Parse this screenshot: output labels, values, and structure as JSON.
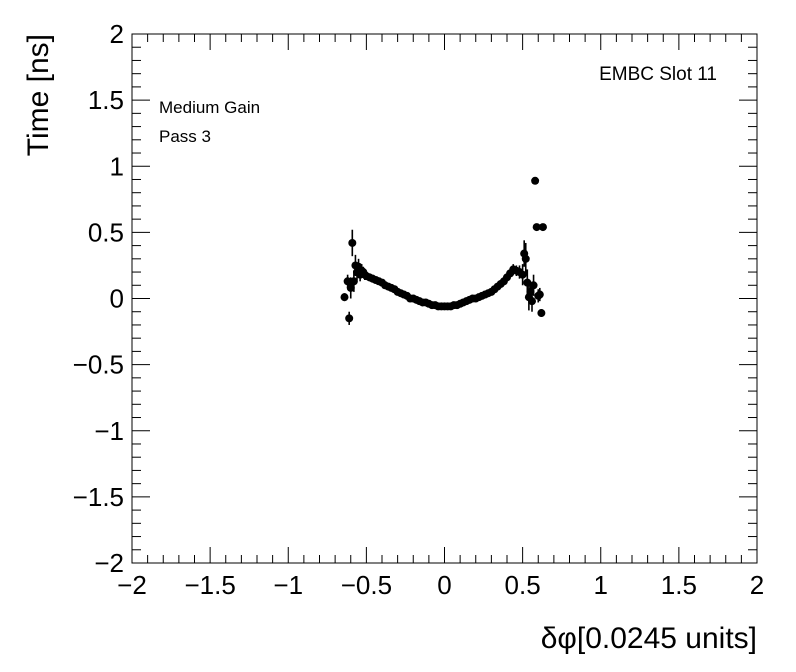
{
  "chart_data": {
    "type": "scatter",
    "title": "",
    "xlabel": "δφ[0.0245 units]",
    "ylabel": "Time [ns]",
    "xlim": [
      -2,
      2
    ],
    "ylim": [
      -2,
      2
    ],
    "xticks": [
      -2,
      -1.5,
      -1,
      -0.5,
      0,
      0.5,
      1,
      1.5,
      2
    ],
    "yticks": [
      -2,
      -1.5,
      -1,
      -0.5,
      0,
      0.5,
      1,
      1.5,
      2
    ],
    "xtick_labels": [
      "−2",
      "−1.5",
      "−1",
      "−0.5",
      "0",
      "0.5",
      "1",
      "1.5",
      "2"
    ],
    "ytick_labels": [
      "−2",
      "−1.5",
      "−1",
      "−0.5",
      "0",
      "0.5",
      "1",
      "1.5",
      "2"
    ],
    "grid": false,
    "annotations": [
      "Medium Gain",
      "Pass 3",
      "EMBC Slot 11"
    ],
    "series": [
      {
        "marker": "circle",
        "color": "#000000",
        "points": [
          {
            "x": -0.64,
            "y": 0.01,
            "err": 0.03
          },
          {
            "x": -0.62,
            "y": 0.13,
            "err": 0.05
          },
          {
            "x": -0.61,
            "y": -0.15,
            "err": 0.05
          },
          {
            "x": -0.6,
            "y": 0.08,
            "err": 0.08
          },
          {
            "x": -0.59,
            "y": 0.42,
            "err": 0.1
          },
          {
            "x": -0.58,
            "y": 0.13,
            "err": 0.08
          },
          {
            "x": -0.57,
            "y": 0.25,
            "err": 0.08
          },
          {
            "x": -0.56,
            "y": 0.2,
            "err": 0.06
          },
          {
            "x": -0.55,
            "y": 0.24,
            "err": 0.06
          },
          {
            "x": -0.54,
            "y": 0.18,
            "err": 0.05
          },
          {
            "x": -0.53,
            "y": 0.21,
            "err": 0.05
          },
          {
            "x": -0.52,
            "y": 0.2,
            "err": 0.04
          },
          {
            "x": -0.51,
            "y": 0.18,
            "err": 0.04
          },
          {
            "x": -0.5,
            "y": 0.17,
            "err": 0.03
          },
          {
            "x": -0.48,
            "y": 0.16,
            "err": 0.03
          },
          {
            "x": -0.46,
            "y": 0.15,
            "err": 0.03
          },
          {
            "x": -0.44,
            "y": 0.14,
            "err": 0.02
          },
          {
            "x": -0.42,
            "y": 0.13,
            "err": 0.02
          },
          {
            "x": -0.4,
            "y": 0.12,
            "err": 0.02
          },
          {
            "x": -0.38,
            "y": 0.1,
            "err": 0.02
          },
          {
            "x": -0.36,
            "y": 0.09,
            "err": 0.02
          },
          {
            "x": -0.34,
            "y": 0.08,
            "err": 0.02
          },
          {
            "x": -0.32,
            "y": 0.07,
            "err": 0.02
          },
          {
            "x": -0.3,
            "y": 0.05,
            "err": 0.02
          },
          {
            "x": -0.28,
            "y": 0.04,
            "err": 0.02
          },
          {
            "x": -0.26,
            "y": 0.03,
            "err": 0.02
          },
          {
            "x": -0.24,
            "y": 0.02,
            "err": 0.02
          },
          {
            "x": -0.22,
            "y": 0.0,
            "err": 0.02
          },
          {
            "x": -0.2,
            "y": 0.0,
            "err": 0.02
          },
          {
            "x": -0.18,
            "y": -0.01,
            "err": 0.02
          },
          {
            "x": -0.16,
            "y": -0.02,
            "err": 0.02
          },
          {
            "x": -0.14,
            "y": -0.03,
            "err": 0.02
          },
          {
            "x": -0.12,
            "y": -0.03,
            "err": 0.02
          },
          {
            "x": -0.1,
            "y": -0.04,
            "err": 0.02
          },
          {
            "x": -0.08,
            "y": -0.05,
            "err": 0.02
          },
          {
            "x": -0.06,
            "y": -0.05,
            "err": 0.02
          },
          {
            "x": -0.04,
            "y": -0.06,
            "err": 0.02
          },
          {
            "x": -0.02,
            "y": -0.06,
            "err": 0.02
          },
          {
            "x": 0.0,
            "y": -0.06,
            "err": 0.02
          },
          {
            "x": 0.02,
            "y": -0.06,
            "err": 0.02
          },
          {
            "x": 0.04,
            "y": -0.06,
            "err": 0.02
          },
          {
            "x": 0.06,
            "y": -0.05,
            "err": 0.02
          },
          {
            "x": 0.08,
            "y": -0.05,
            "err": 0.02
          },
          {
            "x": 0.1,
            "y": -0.04,
            "err": 0.02
          },
          {
            "x": 0.12,
            "y": -0.03,
            "err": 0.02
          },
          {
            "x": 0.14,
            "y": -0.02,
            "err": 0.02
          },
          {
            "x": 0.16,
            "y": -0.01,
            "err": 0.02
          },
          {
            "x": 0.18,
            "y": 0.0,
            "err": 0.02
          },
          {
            "x": 0.2,
            "y": 0.0,
            "err": 0.02
          },
          {
            "x": 0.22,
            "y": 0.01,
            "err": 0.02
          },
          {
            "x": 0.24,
            "y": 0.02,
            "err": 0.02
          },
          {
            "x": 0.26,
            "y": 0.03,
            "err": 0.02
          },
          {
            "x": 0.28,
            "y": 0.04,
            "err": 0.02
          },
          {
            "x": 0.3,
            "y": 0.05,
            "err": 0.02
          },
          {
            "x": 0.32,
            "y": 0.07,
            "err": 0.02
          },
          {
            "x": 0.34,
            "y": 0.09,
            "err": 0.02
          },
          {
            "x": 0.36,
            "y": 0.11,
            "err": 0.03
          },
          {
            "x": 0.38,
            "y": 0.13,
            "err": 0.03
          },
          {
            "x": 0.4,
            "y": 0.16,
            "err": 0.03
          },
          {
            "x": 0.42,
            "y": 0.19,
            "err": 0.03
          },
          {
            "x": 0.44,
            "y": 0.22,
            "err": 0.04
          },
          {
            "x": 0.46,
            "y": 0.21,
            "err": 0.04
          },
          {
            "x": 0.48,
            "y": 0.2,
            "err": 0.05
          },
          {
            "x": 0.5,
            "y": 0.18,
            "err": 0.08
          },
          {
            "x": 0.51,
            "y": 0.34,
            "err": 0.1
          },
          {
            "x": 0.52,
            "y": 0.3,
            "err": 0.12
          },
          {
            "x": 0.53,
            "y": 0.12,
            "err": 0.1
          },
          {
            "x": 0.54,
            "y": 0.01,
            "err": 0.1
          },
          {
            "x": 0.55,
            "y": 0.05,
            "err": 0.08
          },
          {
            "x": 0.56,
            "y": -0.02,
            "err": 0.08
          },
          {
            "x": 0.57,
            "y": 0.1,
            "err": 0.08
          },
          {
            "x": 0.58,
            "y": 0.89,
            "err": 0.02
          },
          {
            "x": 0.59,
            "y": 0.54,
            "err": 0.02
          },
          {
            "x": 0.6,
            "y": 0.02,
            "err": 0.05
          },
          {
            "x": 0.61,
            "y": 0.03,
            "err": 0.05
          },
          {
            "x": 0.62,
            "y": -0.11,
            "err": 0.03
          },
          {
            "x": 0.63,
            "y": 0.54,
            "err": 0.02
          }
        ]
      }
    ]
  }
}
